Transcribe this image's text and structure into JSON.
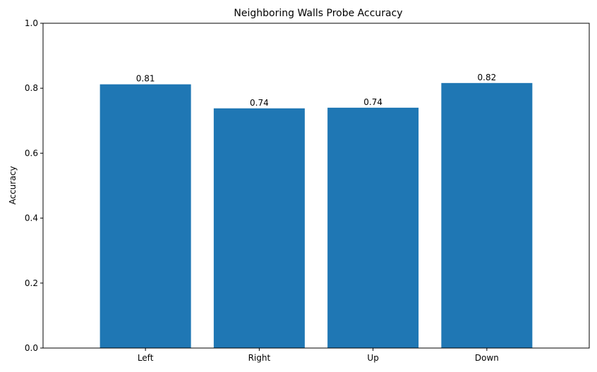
{
  "chart_data": {
    "type": "bar",
    "title": "Neighboring Walls Probe Accuracy",
    "xlabel": "",
    "ylabel": "Accuracy",
    "categories": [
      "Left",
      "Right",
      "Up",
      "Down"
    ],
    "values": [
      0.812,
      0.738,
      0.74,
      0.816
    ],
    "value_labels": [
      "0.81",
      "0.74",
      "0.74",
      "0.82"
    ],
    "ylim": [
      0,
      1.0
    ],
    "yticks": [
      0.0,
      0.2,
      0.4,
      0.6,
      0.8,
      1.0
    ],
    "ytick_labels": [
      "0.0",
      "0.2",
      "0.4",
      "0.6",
      "0.8",
      "1.0"
    ],
    "grid": false,
    "legend": "none",
    "bar_color": "#1f77b4"
  }
}
